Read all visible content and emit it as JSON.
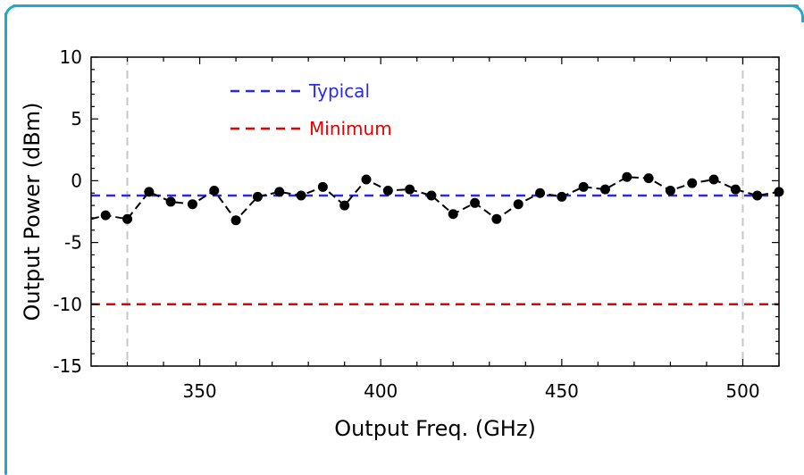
{
  "chart_data": {
    "type": "line",
    "title": "",
    "xlabel": "Output Freq. (GHz)",
    "ylabel": "Output Power (dBm)",
    "xlim": [
      320,
      510
    ],
    "ylim": [
      -15,
      10
    ],
    "xticks": [
      350,
      400,
      450,
      500
    ],
    "yticks": [
      -15,
      -10,
      -5,
      0,
      5,
      10
    ],
    "grid": false,
    "legend_position": "top-left",
    "colors": {
      "data": "#000000",
      "typical": "#2a2ae6",
      "minimum": "#e60000",
      "markers": "#c8c8c8",
      "frame": "#21a9c9"
    },
    "series": [
      {
        "name": "",
        "style": "dashed-with-points",
        "x": [
          324,
          330,
          336,
          342,
          348,
          354,
          360,
          366,
          372,
          378,
          384,
          390,
          396,
          402,
          408,
          414,
          420,
          426,
          432,
          438,
          444,
          450,
          456,
          462,
          468,
          474,
          480,
          486,
          492,
          498,
          504,
          510
        ],
        "y": [
          -2.8,
          -3.1,
          -0.9,
          -1.7,
          -1.9,
          -0.8,
          -3.2,
          -1.3,
          -0.9,
          -1.2,
          -0.5,
          -2.0,
          0.1,
          -0.8,
          -0.7,
          -1.2,
          -2.7,
          -1.8,
          -3.1,
          -1.9,
          -1.0,
          -1.3,
          -0.5,
          -0.7,
          0.3,
          0.2,
          -0.8,
          -0.2,
          0.1,
          -0.7,
          -1.2,
          -0.9
        ]
      },
      {
        "name": "Typical",
        "style": "dashed",
        "y_constant": -1.2
      },
      {
        "name": "Minimum",
        "style": "dashed",
        "y_constant": -10
      }
    ],
    "vertical_markers": [
      330,
      500
    ]
  }
}
